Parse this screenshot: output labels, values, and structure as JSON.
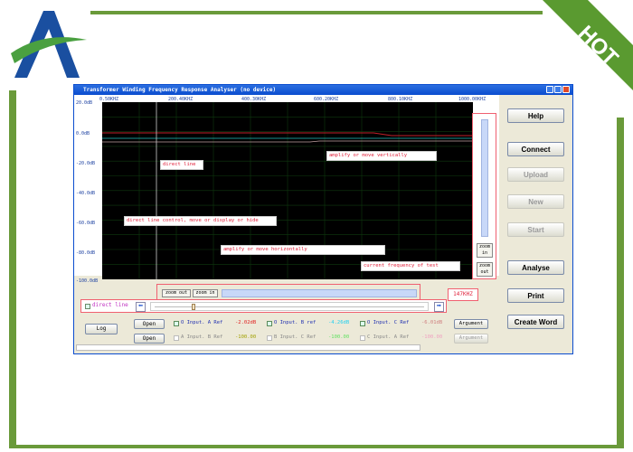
{
  "logo": {
    "letter": "A"
  },
  "ribbon": {
    "text": "HOT"
  },
  "window": {
    "title": "Transformer Winding Frequency Response Analyser (no device)"
  },
  "chart": {
    "y_labels": [
      "20.0dB",
      "0.0dB",
      "-20.0dB",
      "-40.0dB",
      "-60.0dB",
      "-80.0dB",
      "-100.0dB"
    ],
    "x_labels": [
      "0.50KHZ",
      "200.40KHZ",
      "400.30KHZ",
      "600.20KHZ",
      "800.10KHZ",
      "1000.00KHZ"
    ],
    "series_colors": [
      "#c0202a",
      "#20c0c0",
      "#c0a0a0"
    ]
  },
  "annotations": {
    "direct_line": "direct line",
    "vertical": "amplify or move vertically",
    "direct_control": "direct line control, move or display or hide",
    "horizontal": "amplify or move horizontally",
    "current_freq": "current frequency of test",
    "freq_value": "147KHZ"
  },
  "vzoom": {
    "zoom_in": "zoom in",
    "zoom_out": "zoom out"
  },
  "hzoom": {
    "zoom_out": "zoom out",
    "zoom_in": "zoom in"
  },
  "direct_line_checkbox": "direct line",
  "buttons": {
    "help": "Help",
    "connect": "Connect",
    "upload": "Upload",
    "new": "New",
    "start": "Start",
    "analyse": "Analyse",
    "print": "Print",
    "create_word": "Create Word",
    "log": "Log"
  },
  "rows": [
    {
      "open": "Open",
      "items": [
        {
          "label": "O Input. A Ref",
          "value": "-2.02dB",
          "color": "#e02020",
          "checked": true
        },
        {
          "label": "O Input. B ref",
          "value": "-4.26dB",
          "color": "#20d0f0",
          "checked": true
        },
        {
          "label": "O Input. C Ref",
          "value": "-6.01dB",
          "color": "#d08080",
          "checked": true
        }
      ],
      "argument": "Argument"
    },
    {
      "open": "Open",
      "items": [
        {
          "label": "A Input. B Ref",
          "value": "-100.00",
          "color": "#a0a000",
          "checked": false
        },
        {
          "label": "B Input. C Ref",
          "value": "-100.00",
          "color": "#60e060",
          "checked": false
        },
        {
          "label": "C Input. A Ref",
          "value": "-100.00",
          "color": "#f0a0c0",
          "checked": false
        }
      ],
      "argument": "Argument"
    }
  ]
}
